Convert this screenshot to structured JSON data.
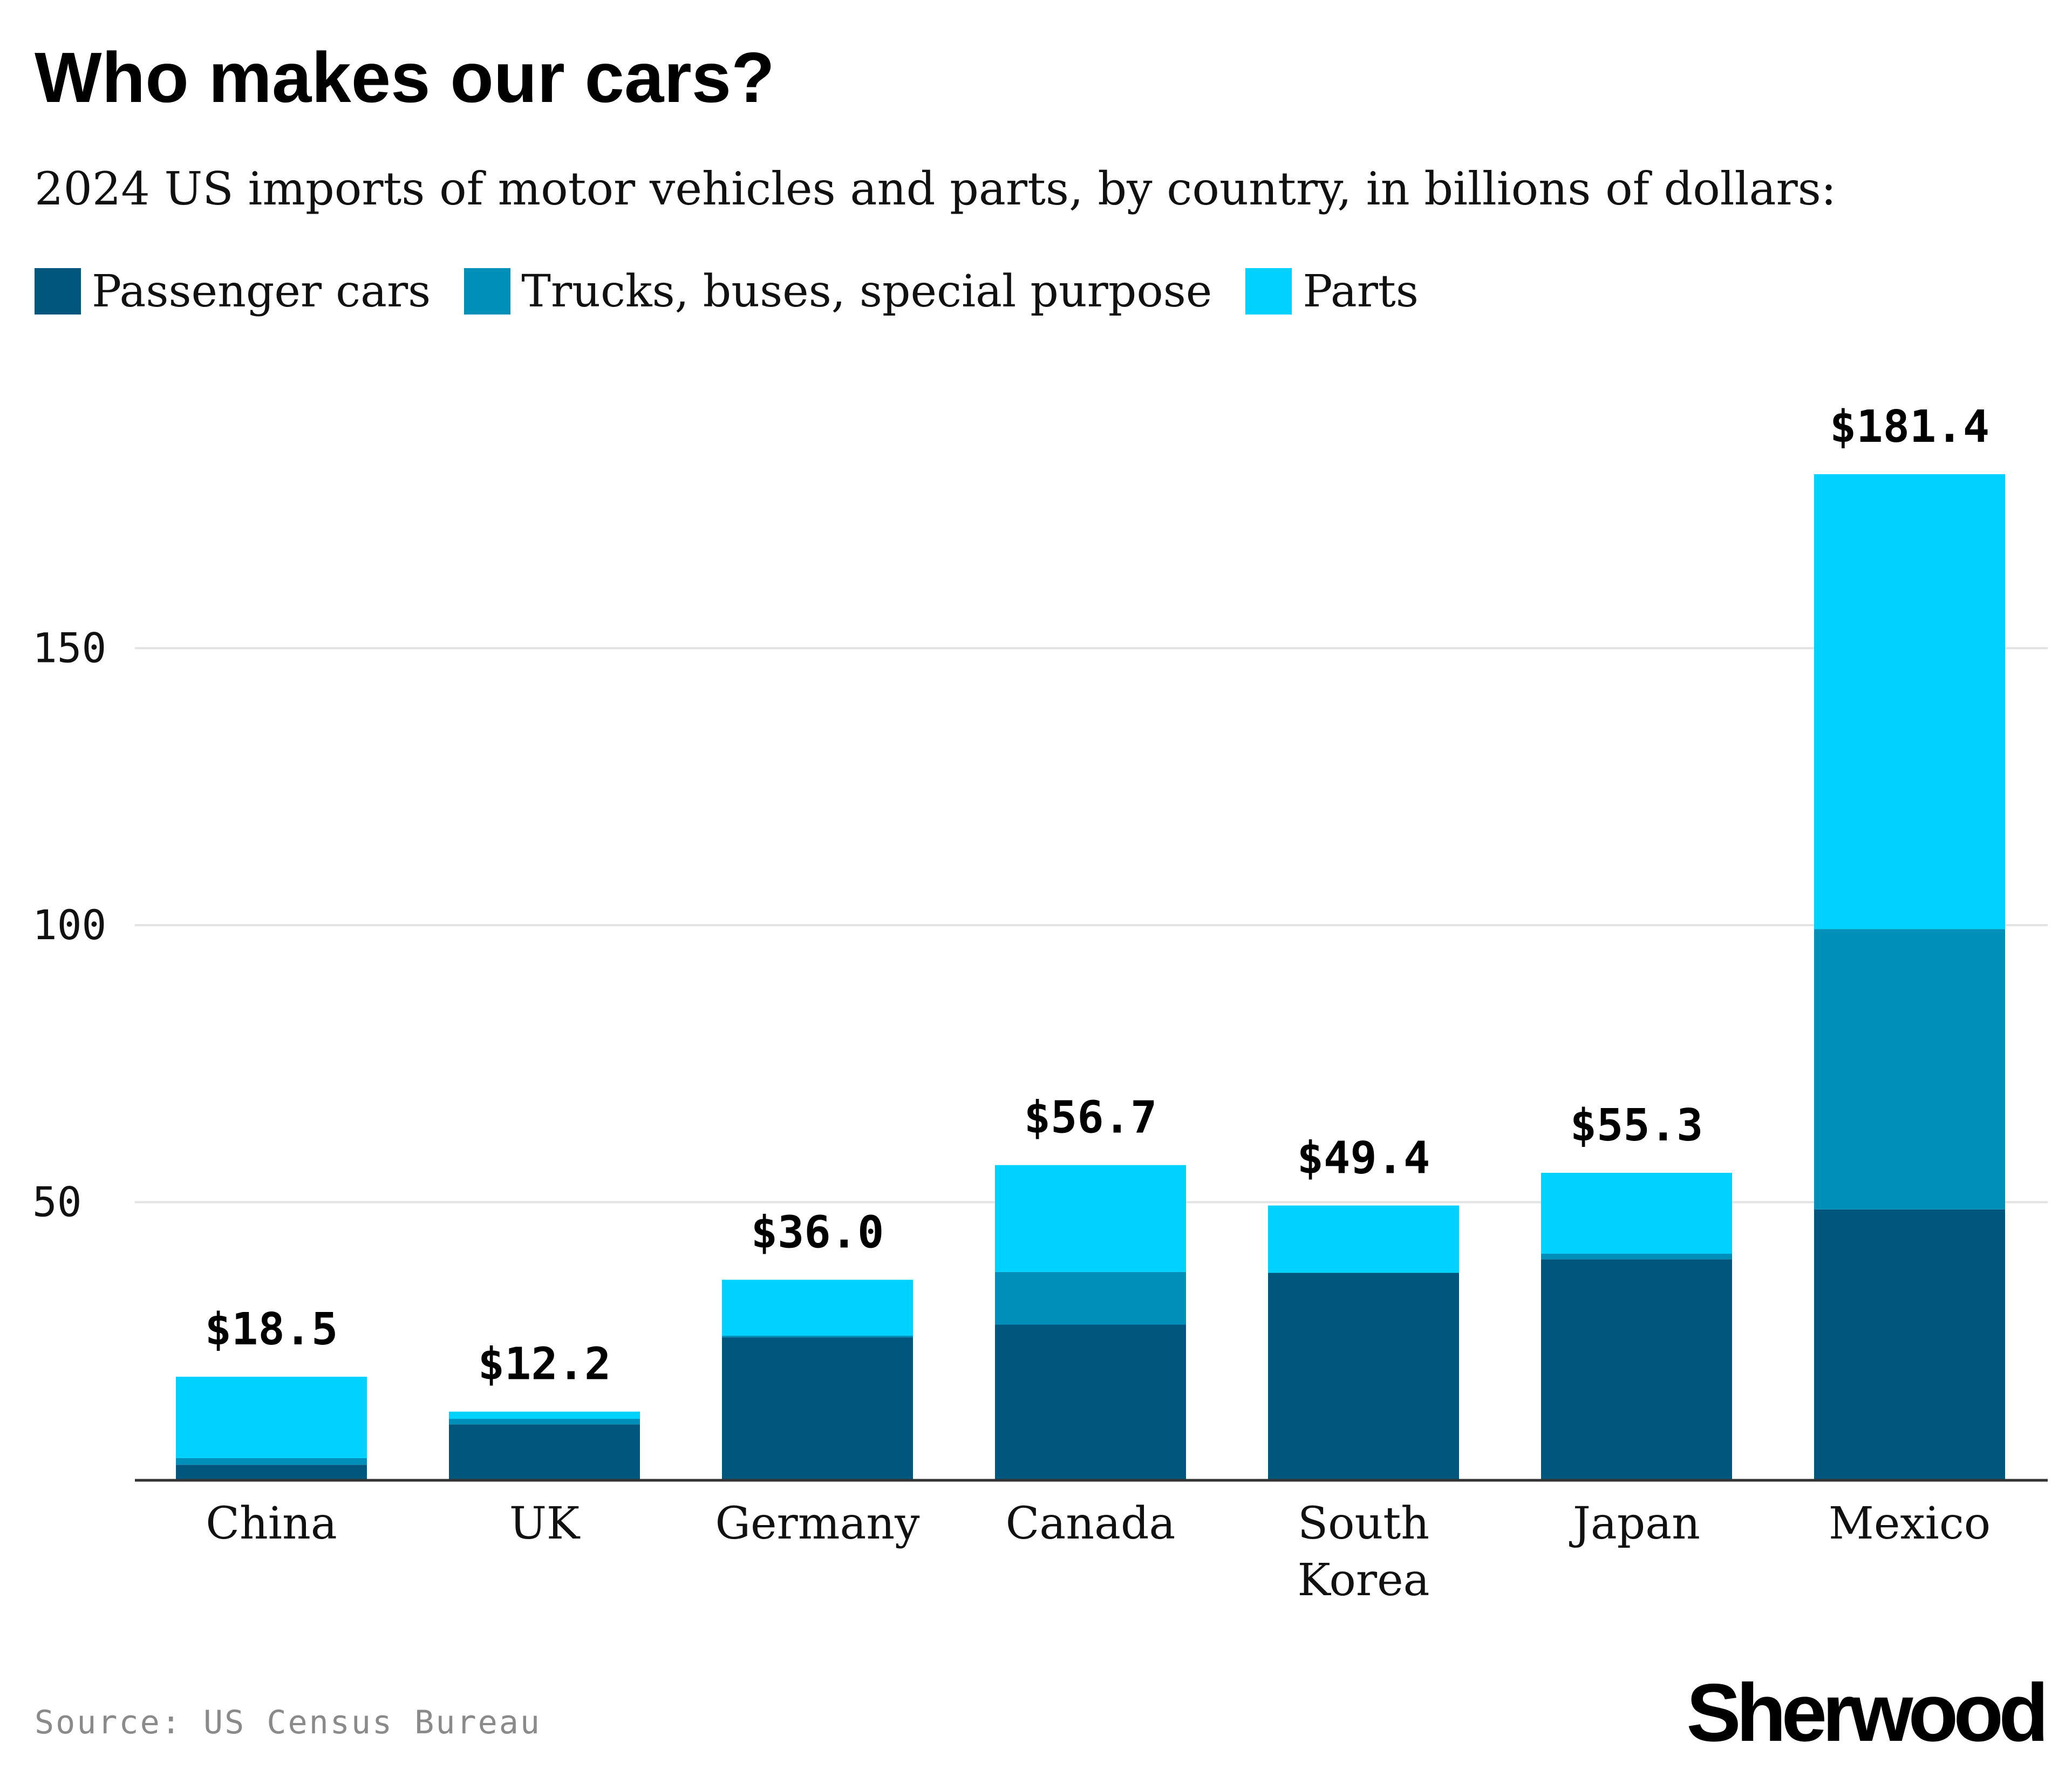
{
  "title": "Who makes our cars?",
  "subtitle": "2024 US imports of motor vehicles and parts, by country, in billions of dollars:",
  "legend": [
    {
      "label": "Passenger cars",
      "color": "#00567d"
    },
    {
      "label": "Trucks, buses, special purpose",
      "color": "#008fb9"
    },
    {
      "label": "Parts",
      "color": "#00d1ff"
    }
  ],
  "source": "Source: US Census Bureau",
  "logo": "Sherwood",
  "colors": {
    "gridline": "#e3e3e3",
    "axis": "#333333",
    "text": "#111111"
  },
  "chart_data": {
    "type": "bar",
    "stacked": true,
    "categories": [
      "China",
      "UK",
      "Germany",
      "Canada",
      "South Korea",
      "Japan",
      "Mexico"
    ],
    "series": [
      {
        "name": "Passenger cars",
        "values": [
          2.6,
          9.9,
          25.6,
          27.9,
          37.2,
          39.7,
          48.7
        ]
      },
      {
        "name": "Trucks, buses, special purpose",
        "values": [
          1.2,
          1.0,
          0.3,
          9.5,
          0.1,
          1.0,
          50.6
        ]
      },
      {
        "name": "Parts",
        "values": [
          14.7,
          1.3,
          10.1,
          19.3,
          12.1,
          14.6,
          82.1
        ]
      }
    ],
    "totals": [
      18.5,
      12.2,
      36.0,
      56.7,
      49.4,
      55.3,
      181.4
    ],
    "total_labels": [
      "$18.5",
      "$12.2",
      "$36.0",
      "$56.7",
      "$49.4",
      "$55.3",
      "$181.4"
    ],
    "yticks": [
      50,
      100,
      150
    ],
    "ylim": [
      0,
      190
    ],
    "grid": true,
    "legend_position": "top-left"
  }
}
